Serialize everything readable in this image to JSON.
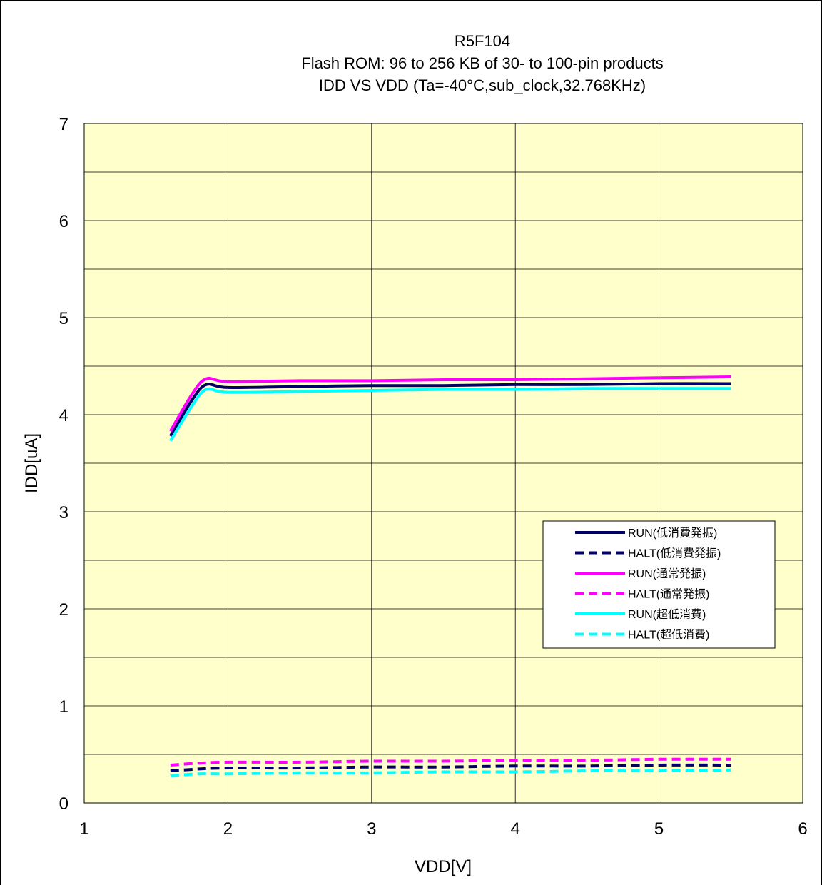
{
  "colors": {
    "plot_background": "#ffffcc",
    "run_low": "#000066",
    "run_normal": "#ff00ff",
    "run_ultra": "#00ffff"
  },
  "chart_data": {
    "type": "line",
    "title_lines": [
      "R5F104",
      "Flash ROM: 96 to 256 KB of 30- to 100-pin products",
      "IDD VS VDD (Ta=-40°C,sub_clock,32.768KHz)"
    ],
    "xlabel": "VDD[V]",
    "ylabel": "IDD[uA]",
    "xlim": [
      1,
      6
    ],
    "ylim": [
      0,
      7
    ],
    "xticks": [
      1,
      2,
      3,
      4,
      5,
      6
    ],
    "yticks": [
      0,
      1,
      2,
      3,
      4,
      5,
      6,
      7
    ],
    "grid": true,
    "legend_position": "right",
    "series": [
      {
        "name": "RUN(低消費発振)",
        "color": "#000066",
        "dash": "solid",
        "x": [
          1.6,
          1.75,
          1.85,
          2.0,
          2.5,
          3.0,
          3.5,
          4.0,
          4.5,
          5.0,
          5.5
        ],
        "y": [
          3.78,
          4.15,
          4.31,
          4.28,
          4.29,
          4.3,
          4.3,
          4.31,
          4.31,
          4.32,
          4.32
        ]
      },
      {
        "name": "HALT(低消費発振)",
        "color": "#000066",
        "dash": "dashed",
        "x": [
          1.6,
          1.8,
          2.0,
          2.5,
          3.0,
          3.5,
          4.0,
          4.5,
          5.0,
          5.5
        ],
        "y": [
          0.33,
          0.35,
          0.36,
          0.36,
          0.37,
          0.37,
          0.38,
          0.38,
          0.39,
          0.39
        ]
      },
      {
        "name": "RUN(通常発振)",
        "color": "#ff00ff",
        "dash": "solid",
        "x": [
          1.6,
          1.75,
          1.85,
          2.0,
          2.5,
          3.0,
          3.5,
          4.0,
          4.5,
          5.0,
          5.5
        ],
        "y": [
          3.83,
          4.21,
          4.37,
          4.34,
          4.35,
          4.35,
          4.36,
          4.36,
          4.37,
          4.38,
          4.39
        ]
      },
      {
        "name": "HALT(通常発振)",
        "color": "#ff00ff",
        "dash": "dashed",
        "x": [
          1.6,
          1.8,
          2.0,
          2.5,
          3.0,
          3.5,
          4.0,
          4.5,
          5.0,
          5.5
        ],
        "y": [
          0.39,
          0.41,
          0.42,
          0.42,
          0.43,
          0.43,
          0.44,
          0.44,
          0.45,
          0.45
        ]
      },
      {
        "name": "RUN(超低消費)",
        "color": "#00ffff",
        "dash": "solid",
        "x": [
          1.6,
          1.75,
          1.85,
          2.0,
          2.5,
          3.0,
          3.5,
          4.0,
          4.5,
          5.0,
          5.5
        ],
        "y": [
          3.73,
          4.09,
          4.26,
          4.23,
          4.24,
          4.25,
          4.26,
          4.26,
          4.27,
          4.27,
          4.27
        ]
      },
      {
        "name": "HALT(超低消費)",
        "color": "#00ffff",
        "dash": "dashed",
        "x": [
          1.6,
          1.8,
          2.0,
          2.5,
          3.0,
          3.5,
          4.0,
          4.5,
          5.0,
          5.5
        ],
        "y": [
          0.28,
          0.3,
          0.3,
          0.31,
          0.31,
          0.32,
          0.32,
          0.33,
          0.33,
          0.34
        ]
      }
    ]
  }
}
